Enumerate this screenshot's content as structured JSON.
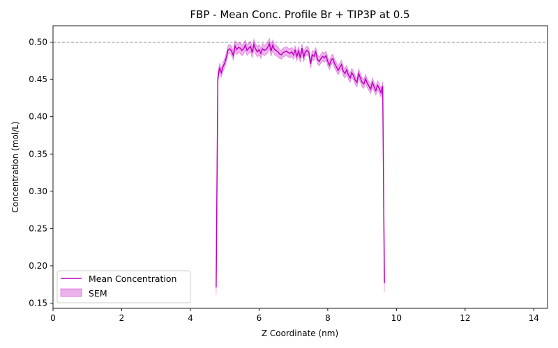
{
  "chart_data": {
    "type": "line",
    "title": "FBP - Mean Conc. Profile Br + TIP3P at 0.5",
    "xlabel": "Z Coordinate (nm)",
    "ylabel": "Concentration (mol/L)",
    "xlim": [
      0,
      14.4
    ],
    "ylim": [
      0.143,
      0.522
    ],
    "xticks": [
      0,
      2,
      4,
      6,
      8,
      10,
      12,
      14
    ],
    "xtick_labels": [
      "0",
      "2",
      "4",
      "6",
      "8",
      "10",
      "12",
      "14"
    ],
    "yticks": [
      0.15,
      0.2,
      0.25,
      0.3,
      0.35,
      0.4,
      0.45,
      0.5
    ],
    "ytick_labels": [
      "0.15",
      "0.20",
      "0.25",
      "0.30",
      "0.35",
      "0.40",
      "0.45",
      "0.50"
    ],
    "reference_line": {
      "y": 0.5,
      "style": "dashed",
      "color": "#808080"
    },
    "legend": {
      "position": "bottom-left",
      "entries": [
        {
          "label": "Mean Concentration",
          "kind": "line"
        },
        {
          "label": "SEM",
          "kind": "band"
        }
      ]
    },
    "series": [
      {
        "name": "Mean Concentration",
        "color": "#bf00bf",
        "band_color": "#bf00bf",
        "x": [
          4.75,
          4.8,
          4.85,
          4.9,
          4.95,
          5.0,
          5.05,
          5.1,
          5.15,
          5.2,
          5.25,
          5.3,
          5.35,
          5.4,
          5.45,
          5.5,
          5.55,
          5.6,
          5.65,
          5.7,
          5.75,
          5.8,
          5.85,
          5.9,
          5.95,
          6.0,
          6.05,
          6.1,
          6.15,
          6.2,
          6.25,
          6.3,
          6.35,
          6.4,
          6.45,
          6.5,
          6.55,
          6.6,
          6.65,
          6.7,
          6.75,
          6.8,
          6.85,
          6.9,
          6.95,
          7.0,
          7.05,
          7.1,
          7.15,
          7.2,
          7.25,
          7.3,
          7.35,
          7.4,
          7.45,
          7.5,
          7.55,
          7.6,
          7.65,
          7.7,
          7.75,
          7.8,
          7.85,
          7.9,
          7.95,
          8.0,
          8.05,
          8.1,
          8.15,
          8.2,
          8.25,
          8.3,
          8.35,
          8.4,
          8.45,
          8.5,
          8.55,
          8.6,
          8.65,
          8.7,
          8.75,
          8.8,
          8.85,
          8.9,
          8.95,
          9.0,
          9.05,
          9.1,
          9.15,
          9.2,
          9.25,
          9.3,
          9.35,
          9.4,
          9.45,
          9.5,
          9.55,
          9.6,
          9.65
        ],
        "values": [
          0.171,
          0.452,
          0.466,
          0.459,
          0.467,
          0.472,
          0.48,
          0.49,
          0.491,
          0.488,
          0.482,
          0.495,
          0.49,
          0.493,
          0.492,
          0.489,
          0.491,
          0.496,
          0.489,
          0.492,
          0.494,
          0.486,
          0.497,
          0.491,
          0.487,
          0.49,
          0.485,
          0.491,
          0.489,
          0.49,
          0.493,
          0.498,
          0.488,
          0.496,
          0.49,
          0.489,
          0.487,
          0.484,
          0.483,
          0.486,
          0.487,
          0.488,
          0.486,
          0.485,
          0.487,
          0.483,
          0.489,
          0.481,
          0.488,
          0.479,
          0.492,
          0.48,
          0.487,
          0.489,
          0.486,
          0.471,
          0.483,
          0.481,
          0.487,
          0.477,
          0.474,
          0.478,
          0.481,
          0.479,
          0.482,
          0.474,
          0.469,
          0.476,
          0.478,
          0.471,
          0.467,
          0.462,
          0.466,
          0.47,
          0.461,
          0.458,
          0.463,
          0.456,
          0.452,
          0.459,
          0.455,
          0.449,
          0.446,
          0.458,
          0.452,
          0.446,
          0.444,
          0.451,
          0.445,
          0.441,
          0.437,
          0.446,
          0.44,
          0.435,
          0.442,
          0.438,
          0.432,
          0.441,
          0.177
        ],
        "sem": [
          0.01,
          0.006,
          0.006,
          0.006,
          0.006,
          0.006,
          0.006,
          0.006,
          0.006,
          0.006,
          0.006,
          0.007,
          0.007,
          0.007,
          0.007,
          0.007,
          0.007,
          0.007,
          0.007,
          0.007,
          0.007,
          0.007,
          0.007,
          0.007,
          0.007,
          0.007,
          0.007,
          0.007,
          0.007,
          0.007,
          0.007,
          0.007,
          0.007,
          0.007,
          0.007,
          0.007,
          0.007,
          0.006,
          0.006,
          0.006,
          0.006,
          0.006,
          0.006,
          0.006,
          0.006,
          0.006,
          0.006,
          0.006,
          0.006,
          0.006,
          0.006,
          0.006,
          0.006,
          0.006,
          0.006,
          0.006,
          0.006,
          0.006,
          0.006,
          0.006,
          0.006,
          0.006,
          0.006,
          0.006,
          0.006,
          0.006,
          0.006,
          0.006,
          0.006,
          0.006,
          0.006,
          0.006,
          0.006,
          0.006,
          0.006,
          0.006,
          0.006,
          0.006,
          0.006,
          0.006,
          0.006,
          0.006,
          0.006,
          0.006,
          0.006,
          0.006,
          0.006,
          0.006,
          0.006,
          0.006,
          0.006,
          0.006,
          0.006,
          0.006,
          0.006,
          0.006,
          0.006,
          0.006,
          0.012
        ]
      }
    ]
  }
}
